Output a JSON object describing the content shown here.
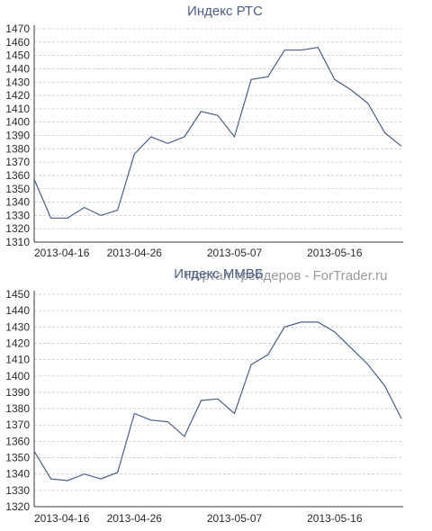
{
  "watermark": "Портал трейдеров - ForTrader.ru",
  "chart_data": [
    {
      "type": "line",
      "title": "Индекс РТС",
      "xlabel": "",
      "ylabel": "",
      "ylim": [
        1310,
        1470
      ],
      "yticks": [
        1310,
        1320,
        1330,
        1340,
        1350,
        1360,
        1370,
        1380,
        1390,
        1400,
        1410,
        1420,
        1430,
        1440,
        1450,
        1460,
        1470
      ],
      "x_ticklabels": [
        "2013-04-16",
        "2013-04-26",
        "2013-05-07",
        "2013-05-16"
      ],
      "grid": true,
      "series": [
        {
          "values": [
            1357,
            1328,
            1328,
            1336,
            1330,
            1334,
            1376,
            1389,
            1384,
            1389,
            1408,
            1405,
            1389,
            1432,
            1434,
            1454,
            1454,
            1456,
            1432,
            1424,
            1414,
            1392,
            1382
          ]
        }
      ]
    },
    {
      "type": "line",
      "title": "Индекс ММВБ",
      "xlabel": "",
      "ylabel": "",
      "ylim": [
        1320,
        1450
      ],
      "yticks": [
        1320,
        1330,
        1340,
        1350,
        1360,
        1370,
        1380,
        1390,
        1400,
        1410,
        1420,
        1430,
        1440,
        1450
      ],
      "x_ticklabels": [
        "2013-04-16",
        "2013-04-26",
        "2013-05-07",
        "2013-05-16"
      ],
      "grid": true,
      "series": [
        {
          "values": [
            1354,
            1337,
            1336,
            1340,
            1337,
            1341,
            1377,
            1373,
            1372,
            1363,
            1385,
            1386,
            1377,
            1407,
            1413,
            1430,
            1433,
            1433,
            1427,
            1417,
            1407,
            1394,
            1374
          ]
        }
      ]
    }
  ]
}
